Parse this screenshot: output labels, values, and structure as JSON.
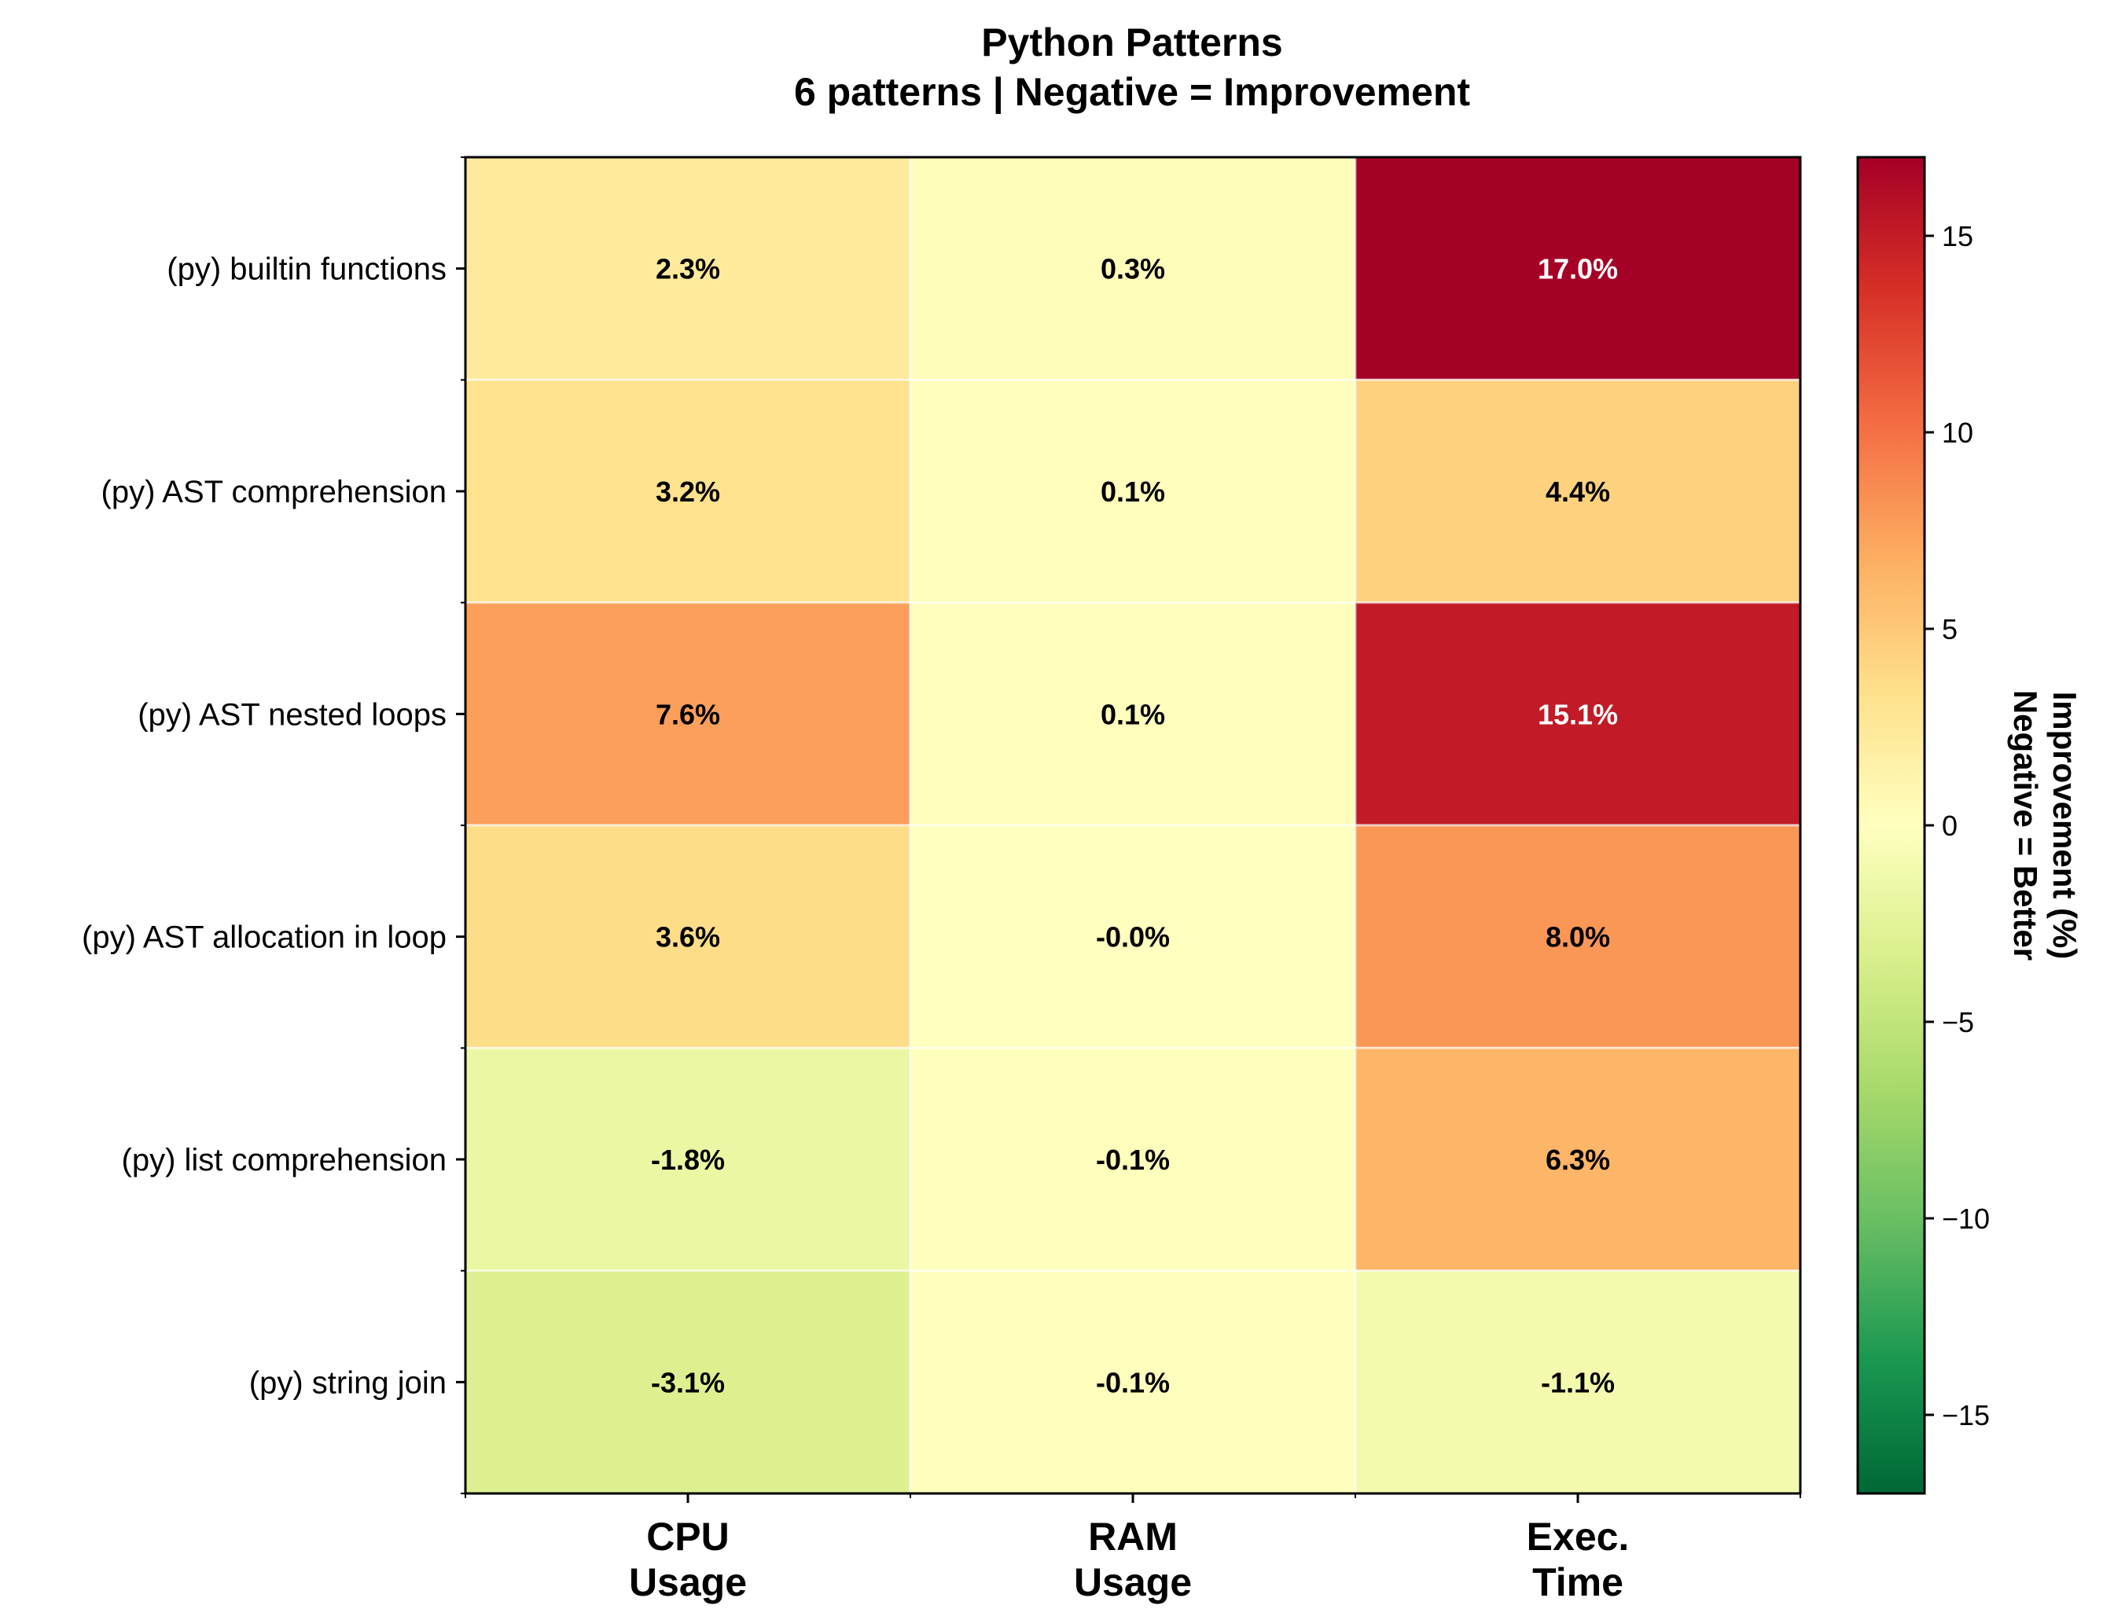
{
  "chart_data": {
    "type": "heatmap",
    "title": [
      "Python Patterns",
      "6 patterns | Negative = Improvement"
    ],
    "rows": [
      "(py) builtin functions",
      "(py) AST comprehension",
      "(py) AST nested loops",
      "(py) AST allocation in loop",
      "(py) list comprehension",
      "(py) string join"
    ],
    "columns": [
      [
        "CPU",
        "Usage"
      ],
      [
        "RAM",
        "Usage"
      ],
      [
        "Exec.",
        "Time"
      ]
    ],
    "values": [
      [
        2.3,
        0.3,
        17.0
      ],
      [
        3.2,
        0.1,
        4.4
      ],
      [
        7.6,
        0.1,
        15.1
      ],
      [
        3.6,
        -0.0,
        8.0
      ],
      [
        -1.8,
        -0.1,
        6.3
      ],
      [
        -3.1,
        -0.1,
        -1.1
      ]
    ],
    "cell_labels": [
      [
        "2.3%",
        "0.3%",
        "17.0%"
      ],
      [
        "3.2%",
        "0.1%",
        "4.4%"
      ],
      [
        "7.6%",
        "0.1%",
        "15.1%"
      ],
      [
        "3.6%",
        "-0.0%",
        "8.0%"
      ],
      [
        "-1.8%",
        "-0.1%",
        "6.3%"
      ],
      [
        "-3.1%",
        "-0.1%",
        "-1.1%"
      ]
    ],
    "colormap": "RdYlGn_r",
    "color_range": [
      -17,
      17
    ],
    "colorbar": {
      "label": [
        "Improvement (%)",
        "Negative = Better"
      ],
      "ticks": [
        15,
        10,
        5,
        0,
        -5,
        -10,
        -15
      ],
      "tick_labels": [
        "15",
        "10",
        "5",
        "0",
        "−5",
        "−10",
        "−15"
      ],
      "placement": "right"
    }
  }
}
